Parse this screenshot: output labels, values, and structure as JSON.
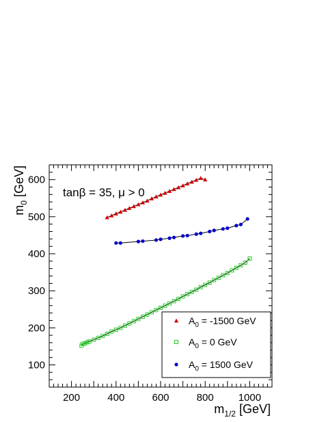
{
  "chart_data": {
    "type": "scatter",
    "title": "",
    "annotation": "tanβ = 35, μ > 0",
    "xlabel": {
      "main": "m",
      "sub": "1/2",
      "unit": " [GeV]"
    },
    "ylabel": {
      "main": "m",
      "sub": "0",
      "unit": " [GeV]"
    },
    "xlim": [
      100,
      1100
    ],
    "ylim": [
      40,
      640
    ],
    "xticks": [
      200,
      400,
      600,
      800,
      1000
    ],
    "yticks": [
      100,
      200,
      300,
      400,
      500,
      600
    ],
    "legend_position": "bottom-right",
    "series": [
      {
        "name": "A0 = -1500 GeV",
        "legend_main": "A",
        "legend_sub": "0",
        "legend_rest": " = -1500 GeV",
        "color": "#d40000",
        "marker": "triangle",
        "x": [
          360,
          380,
          400,
          420,
          440,
          460,
          480,
          500,
          520,
          540,
          560,
          580,
          600,
          620,
          640,
          660,
          680,
          700,
          720,
          740,
          760,
          780,
          800
        ],
        "y": [
          498,
          503,
          508,
          513,
          518,
          523,
          528,
          533,
          538,
          543,
          549,
          554,
          559,
          564,
          569,
          574,
          579,
          584,
          589,
          594,
          599,
          604,
          600
        ]
      },
      {
        "name": "A0 = 0 GeV",
        "legend_main": "A",
        "legend_sub": "0",
        "legend_rest": " = 0 GeV",
        "color": "#22cc22",
        "marker": "open-square",
        "x": [
          245,
          250,
          260,
          270,
          280,
          300,
          320,
          340,
          360,
          380,
          400,
          420,
          440,
          460,
          480,
          500,
          520,
          540,
          560,
          580,
          600,
          620,
          640,
          660,
          680,
          700,
          720,
          740,
          760,
          780,
          800,
          820,
          840,
          860,
          880,
          900,
          920,
          940,
          960,
          980,
          1000
        ],
        "y": [
          152,
          157,
          158,
          161,
          163,
          168,
          173,
          178,
          184,
          190,
          195,
          200,
          206,
          212,
          218,
          224,
          230,
          236,
          242,
          248,
          254,
          260,
          266,
          272,
          278,
          285,
          291,
          297,
          303,
          310,
          316,
          322,
          329,
          335,
          342,
          348,
          355,
          362,
          369,
          376,
          387
        ]
      },
      {
        "name": "A0 = 1500 GeV",
        "legend_main": "A",
        "legend_sub": "0",
        "legend_rest": " = 1500 GeV",
        "color": "#0000cc",
        "marker": "filled-circle",
        "x": [
          400,
          420,
          500,
          520,
          580,
          600,
          640,
          660,
          700,
          720,
          760,
          780,
          820,
          840,
          880,
          900,
          940,
          960,
          990
        ],
        "y": [
          429,
          429,
          433,
          434,
          437,
          439,
          442,
          444,
          448,
          449,
          453,
          455,
          460,
          463,
          467,
          469,
          476,
          479,
          494
        ]
      }
    ]
  }
}
